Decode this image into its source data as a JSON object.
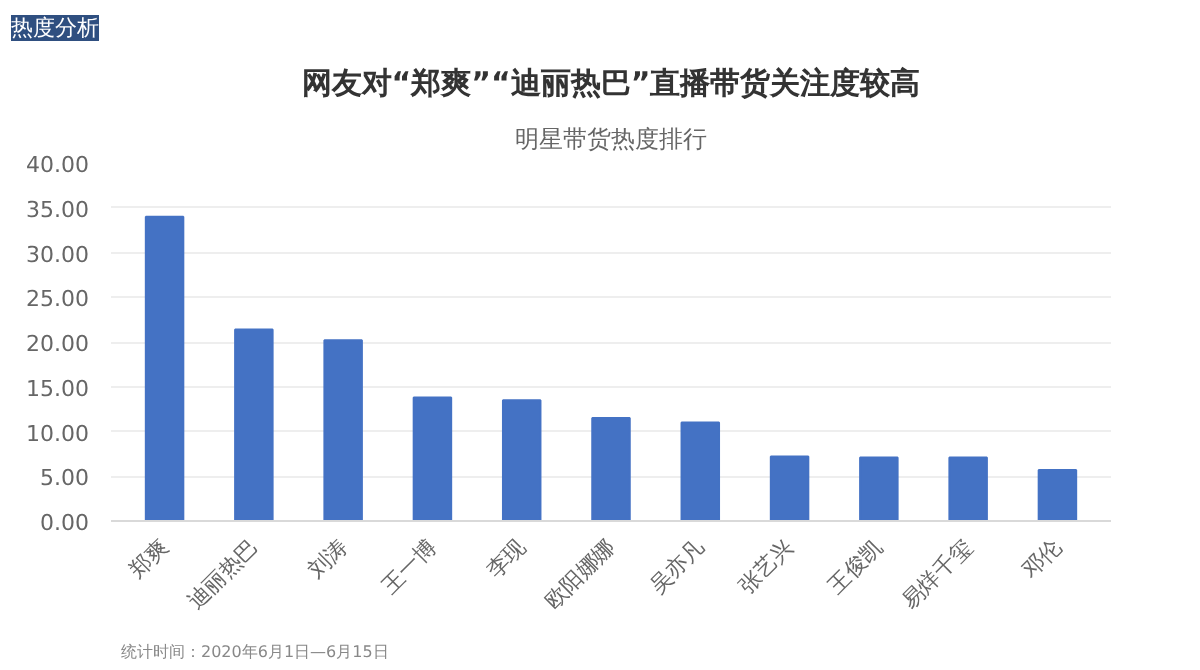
{
  "chart_data": {
    "type": "bar",
    "title": "网友对“郑爽”“迪丽热巴”直播带货关注度较高",
    "subtitle": "明星带货热度排行",
    "annotations": [
      "热度分析",
      "统计时间：2020年6月1日—6月15日"
    ],
    "categories": [
      "郑爽",
      "迪丽热巴",
      "刘涛",
      "王一博",
      "李现",
      "欧阳娜娜",
      "吴亦凡",
      "张艺兴",
      "王俊凯",
      "易烊千玺",
      "邓伦"
    ],
    "values": [
      34.0,
      21.4,
      20.2,
      13.8,
      13.5,
      11.5,
      11.0,
      7.2,
      7.1,
      7.1,
      5.7
    ],
    "color": "#4472c4",
    "ylim": [
      0,
      40
    ],
    "yticks": [
      {
        "value": 0,
        "label": "0.00"
      },
      {
        "value": 5,
        "label": "5.00"
      },
      {
        "value": 10,
        "label": "10.00"
      },
      {
        "value": 15,
        "label": "15.00"
      },
      {
        "value": 20,
        "label": "20.00"
      },
      {
        "value": 25,
        "label": "25.00"
      },
      {
        "value": 30,
        "label": "30.00"
      },
      {
        "value": 35,
        "label": "35.00"
      },
      {
        "value": 40,
        "label": "40.00"
      }
    ],
    "grid": "y"
  }
}
